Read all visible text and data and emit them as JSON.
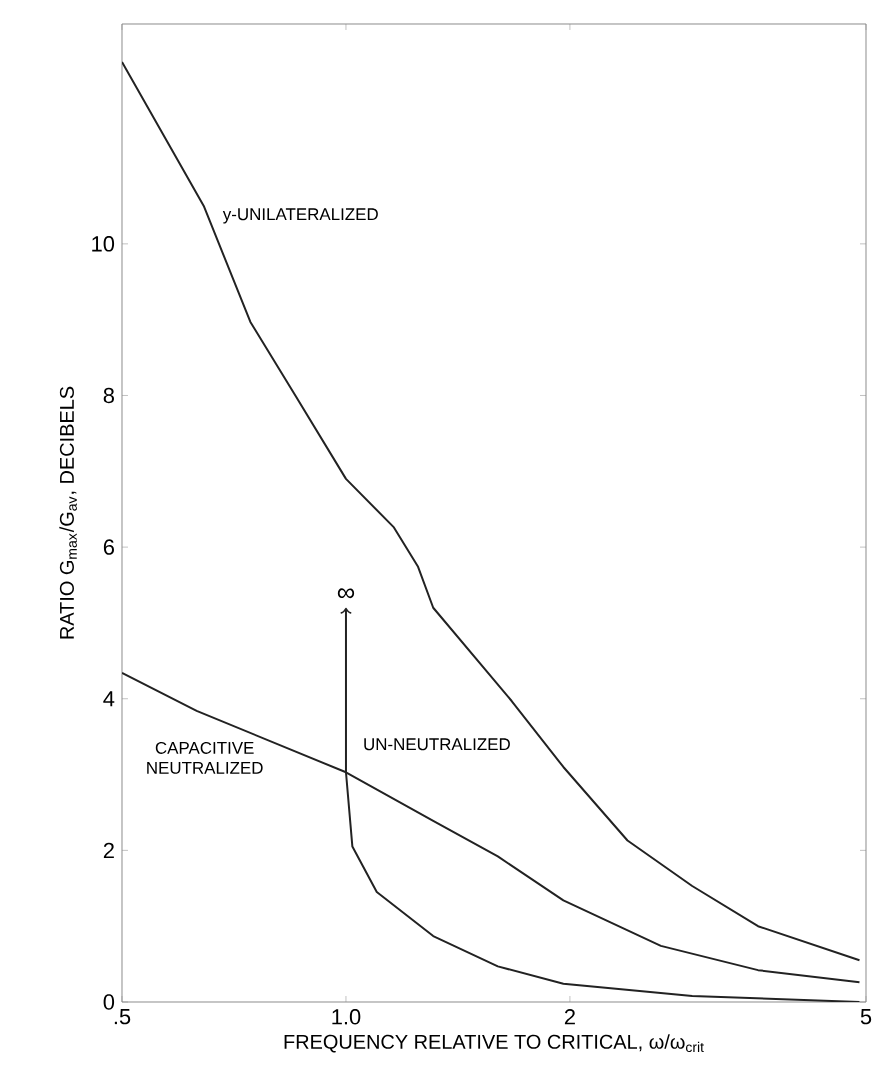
{
  "chart_data": {
    "type": "line",
    "xlabel": "FREQUENCY RELATIVE TO CRITICAL, ω/ω$_{crit}$",
    "ylabel": "RATIO G$_{max}$/G$_{av}$, DECIBELS",
    "log": "x",
    "xlim": [
      0.5,
      5
    ],
    "ylim": [
      0,
      12.9
    ],
    "xticks": [
      {
        "value": 0.5,
        "label": ".5"
      },
      {
        "value": 1,
        "label": "1.0"
      },
      2,
      5
    ],
    "yticks": [
      0,
      2,
      4,
      6,
      8,
      10
    ],
    "grid": false,
    "marker": "none",
    "line_style": "solid",
    "series": [
      {
        "name": "y-UNILATERALIZED",
        "color": "#222222",
        "x": [
          0.5,
          0.644,
          0.744,
          0.855,
          1.0,
          1.16,
          1.25,
          1.31,
          1.67,
          1.96,
          2.39,
          2.92,
          3.58,
          4.9
        ],
        "values": [
          12.4,
          10.5,
          8.97,
          8.0,
          6.9,
          6.26,
          5.74,
          5.2,
          3.97,
          3.1,
          2.13,
          1.53,
          1.0,
          0.55
        ]
      },
      {
        "name": "CAPACITIVE NEUTRALIZED",
        "color": "#222222",
        "x": [
          0.5,
          0.63,
          1.0,
          1.31,
          1.6,
          1.96,
          2.65,
          3.58,
          4.9
        ],
        "values": [
          4.34,
          3.84,
          3.03,
          2.39,
          1.92,
          1.34,
          0.74,
          0.42,
          0.26
        ]
      },
      {
        "name": "UN-NEUTRALIZED",
        "color": "#222222",
        "x": [
          1.0,
          1.0,
          1.02,
          1.1,
          1.31,
          1.6,
          1.96,
          2.92,
          4.9
        ],
        "values": [
          5.2,
          3.03,
          2.05,
          1.45,
          0.87,
          0.47,
          0.24,
          0.08,
          0.0
        ]
      }
    ],
    "annotations": [
      "∞"
    ]
  }
}
